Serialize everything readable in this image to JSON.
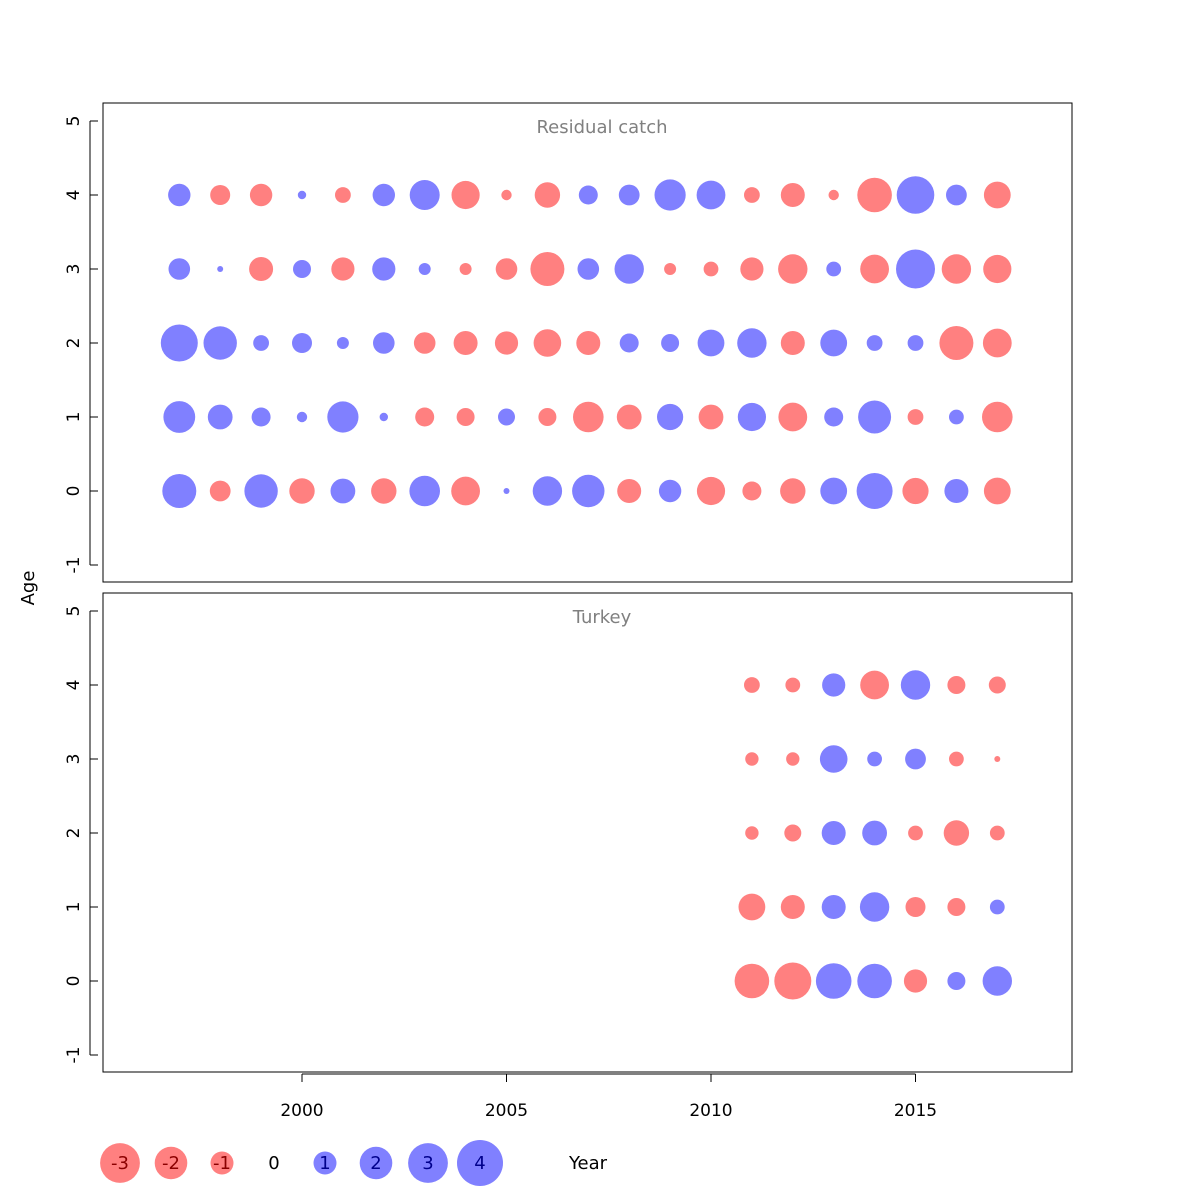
{
  "chart_data": {
    "type": "scatter",
    "subtype": "bubble",
    "xlabel": "Year",
    "ylabel": "Age",
    "xlim": [
      1995,
      2019
    ],
    "ylim": [
      -1.2,
      5.2
    ],
    "x_ticks": [
      2000,
      2005,
      2010,
      2015
    ],
    "y_ticks": [
      -1,
      0,
      1,
      2,
      3,
      4,
      5
    ],
    "colors": {
      "positive": "#8080ff",
      "negative": "#ff8080",
      "positive_text": "#00008b",
      "negative_text": "#8b0000"
    },
    "legend": [
      {
        "label": "-3",
        "value": -3
      },
      {
        "label": "-2",
        "value": -2
      },
      {
        "label": "-1",
        "value": -1
      },
      {
        "label": "0",
        "value": 0
      },
      {
        "label": "1",
        "value": 1
      },
      {
        "label": "2",
        "value": 2
      },
      {
        "label": "3",
        "value": 3
      },
      {
        "label": "4",
        "value": 4
      }
    ],
    "panels": [
      {
        "title": "Residual catch",
        "years": [
          1997,
          1998,
          1999,
          2000,
          2001,
          2002,
          2003,
          2004,
          2005,
          2006,
          2007,
          2008,
          2009,
          2010,
          2011,
          2012,
          2013,
          2014,
          2015,
          2016,
          2017
        ],
        "residuals": {
          "0": [
            3.2,
            -1.2,
            3.1,
            -1.8,
            1.7,
            -1.8,
            2.6,
            -2.3,
            0.1,
            2.4,
            2.9,
            -1.6,
            1.4,
            -2.2,
            -1.0,
            -1.8,
            2.0,
            3.6,
            -1.9,
            1.6,
            -2.0
          ],
          "1": [
            2.8,
            1.7,
            1.0,
            0.3,
            2.7,
            0.2,
            -1.0,
            -0.9,
            0.8,
            -0.9,
            -2.6,
            -1.7,
            1.9,
            -1.7,
            2.2,
            -2.3,
            1.0,
            3.0,
            -0.7,
            0.6,
            -2.6
          ],
          "2": [
            3.8,
            3.1,
            0.7,
            1.1,
            0.4,
            1.3,
            -1.3,
            -1.6,
            -1.5,
            -2.1,
            -1.6,
            1.0,
            0.9,
            2.0,
            2.4,
            -1.6,
            2.0,
            0.7,
            0.7,
            -3.2,
            -2.3
          ],
          "3": [
            1.3,
            0.1,
            -1.6,
            0.9,
            -1.5,
            1.5,
            0.4,
            -0.4,
            -1.3,
            -3.2,
            1.3,
            2.4,
            -0.4,
            -0.6,
            -1.5,
            -2.4,
            0.6,
            -2.3,
            4.2,
            -2.4,
            -2.2
          ],
          "4": [
            1.4,
            -1.1,
            -1.4,
            0.2,
            -0.7,
            1.4,
            2.5,
            -2.2,
            -0.3,
            -1.8,
            1.0,
            1.2,
            2.7,
            2.3,
            -0.7,
            -1.6,
            -0.3,
            -3.3,
            3.9,
            1.2,
            -2.0
          ]
        }
      },
      {
        "title": "Turkey",
        "years": [
          2011,
          2012,
          2013,
          2014,
          2015,
          2016,
          2017
        ],
        "residuals": {
          "0": [
            -3.3,
            -3.8,
            3.5,
            3.3,
            -1.5,
            0.9,
            2.4
          ],
          "1": [
            -2.0,
            -1.6,
            1.6,
            2.4,
            -1.1,
            -0.9,
            0.6
          ],
          "2": [
            -0.5,
            -0.8,
            1.6,
            1.7,
            -0.6,
            -1.8,
            -0.6
          ],
          "3": [
            -0.5,
            -0.5,
            2.1,
            0.6,
            1.2,
            -0.6,
            -0.1
          ],
          "4": [
            -0.7,
            -0.6,
            1.5,
            -2.3,
            2.4,
            -0.9,
            -0.8
          ]
        }
      }
    ]
  }
}
